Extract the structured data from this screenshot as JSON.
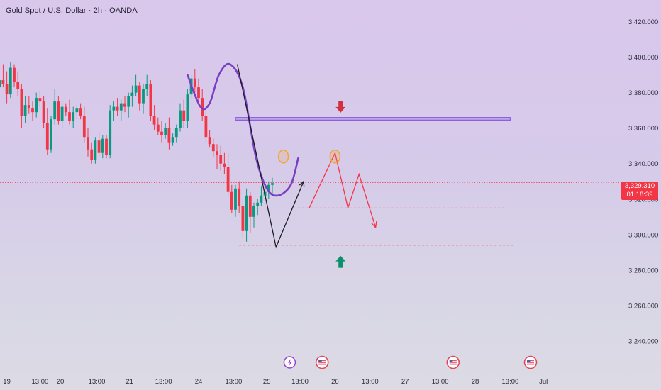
{
  "header": {
    "title": "Gold Spot / U.S. Dollar · 2h · OANDA"
  },
  "price_tag": {
    "price": "3,329.310",
    "countdown": "01:18:39"
  },
  "colors": {
    "up": "#089981",
    "down": "#f23645",
    "curve": "#7a3fc2",
    "zone": "#8c5ee0",
    "arrow_down": "#d32f3c",
    "arrow_up": "#0c8f6b",
    "circle": "#f4a53a",
    "projection": "#f23645"
  },
  "chart_data": {
    "type": "candlestick",
    "y_axis": {
      "range": [
        3230,
        3425
      ],
      "ticks": [
        "3,420.000",
        "3,400.000",
        "3,380.000",
        "3,360.000",
        "3,340.000",
        "3,320.000",
        "3,300.000",
        "3,280.000",
        "3,260.000",
        "3,240.000"
      ],
      "tick_values": [
        3420,
        3400,
        3380,
        3360,
        3340,
        3320,
        3300,
        3280,
        3260,
        3240
      ]
    },
    "x_axis": {
      "ticks": [
        "19",
        "13:00",
        "20",
        "13:00",
        "21",
        "13:00",
        "24",
        "13:00",
        "25",
        "13:00",
        "26",
        "13:00",
        "27",
        "13:00",
        "28",
        "13:00",
        "Jul"
      ],
      "tick_index": [
        3,
        12,
        17.5,
        27.4,
        36.3,
        45.5,
        55,
        64.5,
        73.5,
        82.5,
        92,
        101.5,
        111,
        120.5,
        130,
        139.5,
        148.5
      ]
    },
    "current_price": 3329.31,
    "candles": [
      [
        3388,
        3392,
        3381,
        3383
      ],
      [
        3383,
        3391,
        3378,
        3387
      ],
      [
        3387,
        3396,
        3383,
        3385
      ],
      [
        3385,
        3392,
        3374,
        3379
      ],
      [
        3379,
        3397,
        3377,
        3394
      ],
      [
        3394,
        3396,
        3383,
        3386
      ],
      [
        3386,
        3392,
        3378,
        3382
      ],
      [
        3382,
        3385,
        3360,
        3367
      ],
      [
        3367,
        3378,
        3363,
        3373
      ],
      [
        3373,
        3378,
        3368,
        3371
      ],
      [
        3371,
        3375,
        3364,
        3369
      ],
      [
        3369,
        3380,
        3366,
        3377
      ],
      [
        3377,
        3381,
        3372,
        3375
      ],
      [
        3375,
        3378,
        3360,
        3363
      ],
      [
        3363,
        3371,
        3345,
        3348
      ],
      [
        3348,
        3367,
        3346,
        3365
      ],
      [
        3365,
        3382,
        3362,
        3375
      ],
      [
        3375,
        3378,
        3362,
        3364
      ],
      [
        3364,
        3375,
        3360,
        3372
      ],
      [
        3372,
        3374,
        3367,
        3369
      ],
      [
        3369,
        3376,
        3362,
        3364
      ],
      [
        3364,
        3372,
        3360,
        3369
      ],
      [
        3369,
        3373,
        3365,
        3371
      ],
      [
        3371,
        3374,
        3365,
        3367
      ],
      [
        3367,
        3372,
        3352,
        3355
      ],
      [
        3355,
        3360,
        3344,
        3348
      ],
      [
        3348,
        3352,
        3340,
        3342
      ],
      [
        3342,
        3355,
        3340,
        3353
      ],
      [
        3353,
        3358,
        3344,
        3346
      ],
      [
        3346,
        3356,
        3343,
        3354
      ],
      [
        3354,
        3356,
        3343,
        3345
      ],
      [
        3345,
        3373,
        3343,
        3370
      ],
      [
        3370,
        3375,
        3364,
        3372
      ],
      [
        3372,
        3377,
        3367,
        3370
      ],
      [
        3370,
        3376,
        3364,
        3374
      ],
      [
        3374,
        3378,
        3369,
        3372
      ],
      [
        3372,
        3380,
        3366,
        3378
      ],
      [
        3378,
        3384,
        3372,
        3380
      ],
      [
        3380,
        3390,
        3378,
        3384
      ],
      [
        3384,
        3386,
        3370,
        3374
      ],
      [
        3374,
        3385,
        3368,
        3382
      ],
      [
        3382,
        3390,
        3378,
        3385
      ],
      [
        3385,
        3387,
        3364,
        3367
      ],
      [
        3367,
        3373,
        3359,
        3362
      ],
      [
        3362,
        3366,
        3356,
        3358
      ],
      [
        3358,
        3364,
        3352,
        3356
      ],
      [
        3356,
        3363,
        3354,
        3360
      ],
      [
        3360,
        3366,
        3348,
        3352
      ],
      [
        3352,
        3357,
        3350,
        3355
      ],
      [
        3355,
        3362,
        3352,
        3360
      ],
      [
        3360,
        3374,
        3358,
        3370
      ],
      [
        3370,
        3376,
        3360,
        3364
      ],
      [
        3364,
        3382,
        3360,
        3379
      ],
      [
        3379,
        3390,
        3377,
        3388
      ],
      [
        3388,
        3393,
        3380,
        3383
      ],
      [
        3383,
        3388,
        3374,
        3377
      ],
      [
        3377,
        3382,
        3364,
        3367
      ],
      [
        3367,
        3371,
        3352,
        3355
      ],
      [
        3355,
        3359,
        3349,
        3351
      ],
      [
        3351,
        3354,
        3344,
        3347
      ],
      [
        3347,
        3351,
        3337,
        3345
      ],
      [
        3345,
        3350,
        3336,
        3340
      ],
      [
        3340,
        3346,
        3334,
        3338
      ],
      [
        3338,
        3346,
        3322,
        3324
      ],
      [
        3324,
        3328,
        3312,
        3314
      ],
      [
        3314,
        3328,
        3310,
        3326
      ],
      [
        3326,
        3330,
        3312,
        3316
      ],
      [
        3316,
        3320,
        3298,
        3302
      ],
      [
        3302,
        3326,
        3296,
        3322
      ],
      [
        3322,
        3324,
        3301,
        3310
      ],
      [
        3310,
        3318,
        3304,
        3316
      ],
      [
        3316,
        3320,
        3311,
        3318
      ],
      [
        3318,
        3327,
        3316,
        3322
      ],
      [
        3322,
        3326,
        3317,
        3324
      ],
      [
        3324,
        3330,
        3320,
        3328
      ],
      [
        3328,
        3332,
        3322,
        3329
      ]
    ],
    "drawings": {
      "resistance_zone": [
        3364.5,
        3366
      ],
      "support_lines": [
        3315,
        3294
      ],
      "circle_points": [
        [
          78,
          3344
        ],
        [
          92,
          3344
        ]
      ],
      "projection_path": [
        [
          85,
          3315
        ],
        [
          92,
          3346
        ],
        [
          95.5,
          3315
        ],
        [
          98.5,
          3334
        ],
        [
          103,
          3304
        ]
      ],
      "v_path": [
        [
          65.5,
          3396
        ],
        [
          76,
          3293
        ],
        [
          83.5,
          3330
        ]
      ],
      "curve_path": [
        [
          52,
          3390
        ],
        [
          55.5,
          3372
        ],
        [
          58,
          3374
        ],
        [
          60.5,
          3390
        ],
        [
          63.5,
          3396
        ],
        [
          67,
          3383
        ],
        [
          70.5,
          3344
        ],
        [
          73.5,
          3326
        ],
        [
          76.5,
          3322
        ],
        [
          80,
          3328
        ],
        [
          82,
          3343
        ]
      ]
    }
  }
}
